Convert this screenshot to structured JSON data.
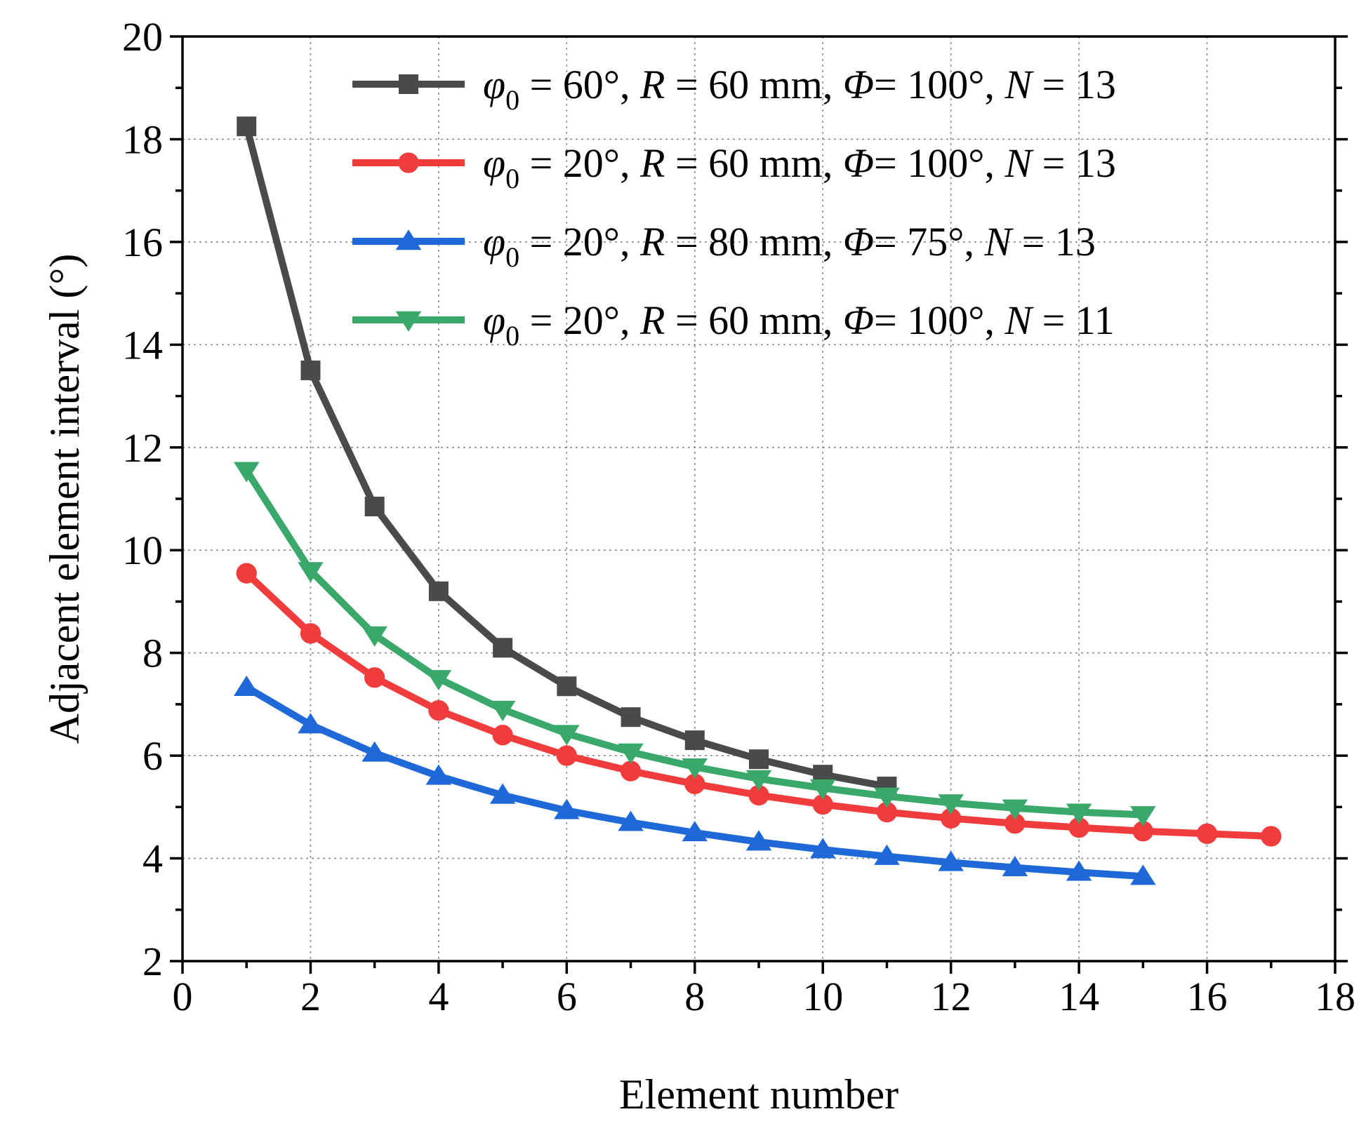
{
  "chart_data": {
    "type": "line",
    "xlabel": "Element number",
    "ylabel": "Adjacent element interval (°)",
    "xlim": [
      0,
      18
    ],
    "ylim": [
      2,
      20
    ],
    "xticks": [
      0,
      2,
      4,
      6,
      8,
      10,
      12,
      14,
      16,
      18
    ],
    "yticks": [
      2,
      4,
      6,
      8,
      10,
      12,
      14,
      16,
      18,
      20
    ],
    "grid": true,
    "legend_position": "top-right",
    "series": [
      {
        "name": "φ0 = 60°, R = 60 mm, Φ = 100°, N = 13",
        "legend": {
          "phi": "φ",
          "sub": "0",
          "t1": " = 60°, ",
          "r": "R",
          "t2": " = 60 mm, ",
          "cphi": "Φ",
          "t3": "= 100°, ",
          "n": "N",
          "t4": " = 13"
        },
        "color": "#4a4a4a",
        "marker": "square",
        "x": [
          1,
          2,
          3,
          4,
          5,
          6,
          7,
          8,
          9,
          10,
          11
        ],
        "y": [
          18.25,
          13.5,
          10.85,
          9.2,
          8.1,
          7.35,
          6.75,
          6.3,
          5.93,
          5.63,
          5.4
        ]
      },
      {
        "name": "φ0 = 20°, R = 60 mm, Φ = 100°, N = 13",
        "legend": {
          "phi": "φ",
          "sub": "0",
          "t1": " = 20°, ",
          "r": "R",
          "t2": " = 60 mm, ",
          "cphi": "Φ",
          "t3": "= 100°, ",
          "n": "N",
          "t4": " = 13"
        },
        "color": "#f03c3c",
        "marker": "circle",
        "x": [
          1,
          2,
          3,
          4,
          5,
          6,
          7,
          8,
          9,
          10,
          11,
          12,
          13,
          14,
          15,
          16,
          17
        ],
        "y": [
          9.55,
          8.38,
          7.52,
          6.88,
          6.4,
          6.0,
          5.7,
          5.45,
          5.23,
          5.05,
          4.9,
          4.78,
          4.68,
          4.6,
          4.53,
          4.48,
          4.43
        ]
      },
      {
        "name": "φ0 = 20°, R = 80 mm, Φ = 75°, N = 13",
        "legend": {
          "phi": "φ",
          "sub": "0",
          "t1": " = 20°, ",
          "r": "R",
          "t2": " = 80 mm, ",
          "cphi": "Φ",
          "t3": "= 75°, ",
          "n": "N",
          "t4": " = 13"
        },
        "color": "#1f68d8",
        "marker": "triangle-up",
        "x": [
          1,
          2,
          3,
          4,
          5,
          6,
          7,
          8,
          9,
          10,
          11,
          12,
          13,
          14,
          15
        ],
        "y": [
          7.33,
          6.6,
          6.05,
          5.6,
          5.23,
          4.93,
          4.7,
          4.5,
          4.32,
          4.17,
          4.04,
          3.92,
          3.82,
          3.73,
          3.65
        ]
      },
      {
        "name": "φ0 = 20°, R = 60 mm, Φ = 100°, N = 11",
        "legend": {
          "phi": "φ",
          "sub": "0",
          "t1": " = 20°, ",
          "r": "R",
          "t2": " = 60 mm, ",
          "cphi": "Φ",
          "t3": "= 100°, ",
          "n": "N",
          "t4": " = 11"
        },
        "color": "#3aa86a",
        "marker": "triangle-down",
        "x": [
          1,
          2,
          3,
          4,
          5,
          6,
          7,
          8,
          9,
          10,
          11,
          12,
          13,
          14,
          15
        ],
        "y": [
          11.55,
          9.6,
          8.35,
          7.5,
          6.9,
          6.43,
          6.07,
          5.78,
          5.55,
          5.37,
          5.21,
          5.08,
          4.98,
          4.9,
          4.85
        ]
      }
    ]
  }
}
